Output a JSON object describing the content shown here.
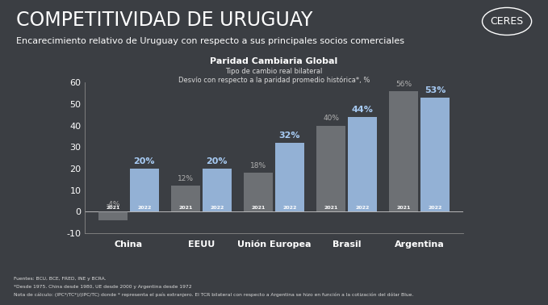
{
  "header": {
    "title": "COMPETITIVIDAD DE URUGUAY",
    "subtitle": "Encarecimiento relativo de Uruguay con respecto a sus principales socios comerciales",
    "logo": "CERES"
  },
  "chart_data": {
    "type": "bar",
    "title": "Paridad Cambiaria Global",
    "subtitle": [
      "Tipo de cambio real bilateral",
      "Desvío con respecto a la paridad promedio histórica*, %"
    ],
    "categories": [
      "China",
      "EEUU",
      "Unión Europea",
      "Brasil",
      "Argentina"
    ],
    "series": [
      {
        "name": "2021",
        "color": "#8f9296",
        "values": [
          -4,
          12,
          18,
          40,
          56
        ],
        "value_labels": [
          "-4%",
          "12%",
          "18%",
          "40%",
          "56%"
        ]
      },
      {
        "name": "2022",
        "color": "#9dbfe6",
        "values": [
          20,
          20,
          32,
          44,
          53
        ],
        "value_labels": [
          "20%",
          "20%",
          "32%",
          "44%",
          "53%"
        ]
      }
    ],
    "ylim": [
      -10,
      60
    ],
    "yticks": [
      -10,
      0,
      10,
      20,
      30,
      40,
      50,
      60
    ],
    "grid": false,
    "data_labels": true
  },
  "notes": [
    "Fuentes: BCU, BCE, FRED, INE y BCRA.",
    "*Desde 1975. China desde 1980, UE desde 2000 y Argentina desde 1972",
    "Nota de cálculo: (IPC*/TC*)/(IPC/TC) donde * representa el país extranjero. El TCR bilateral con respecto a Argentina se hizo en función a la cotización del dólar Blue."
  ]
}
